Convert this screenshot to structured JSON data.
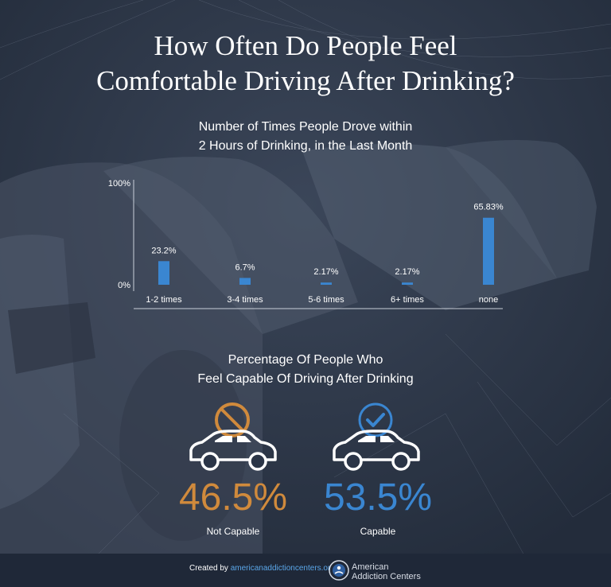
{
  "title_line1": "How Often Do People Feel",
  "title_line2": "Comfortable Driving After Drinking?",
  "colors": {
    "background": "#2b3547",
    "bar": "#3a86d1",
    "not_capable": "#d08a3c",
    "capable": "#3a86d1"
  },
  "chart_data": [
    {
      "type": "bar",
      "title": "Number of Times People Drove within 2 Hours of Drinking, in the Last Month",
      "title_line1": "Number of Times People Drove within",
      "title_line2": "2 Hours of Drinking, in the Last Month",
      "categories": [
        "1-2 times",
        "3-4 times",
        "5-6 times",
        "6+ times",
        "none"
      ],
      "values": [
        23.2,
        6.7,
        2.17,
        2.17,
        65.83
      ],
      "data_labels": [
        "23.2%",
        "6.7%",
        "2.17%",
        "2.17%",
        "65.83%"
      ],
      "ylim": [
        0,
        100
      ],
      "yticks": [
        "0%",
        "100%"
      ],
      "grid": false
    },
    {
      "type": "table",
      "title": "Percentage Of People Who Feel Capable Of Driving After Drinking",
      "title_line1": "Percentage Of People Who",
      "title_line2": "Feel Capable Of Driving After Drinking",
      "items": [
        {
          "label": "Not Capable",
          "value": 46.5,
          "display": "46.5%",
          "icon": "no-symbol-car-icon"
        },
        {
          "label": "Capable",
          "value": 53.5,
          "display": "53.5%",
          "icon": "checkmark-car-icon"
        }
      ]
    }
  ],
  "footer": {
    "credit_prefix": "Created by ",
    "credit_link": "americanaddictioncenters.org",
    "logo_line1": "American",
    "logo_line2": "Addiction Centers",
    "logo_icon": "aac-logo-icon"
  }
}
